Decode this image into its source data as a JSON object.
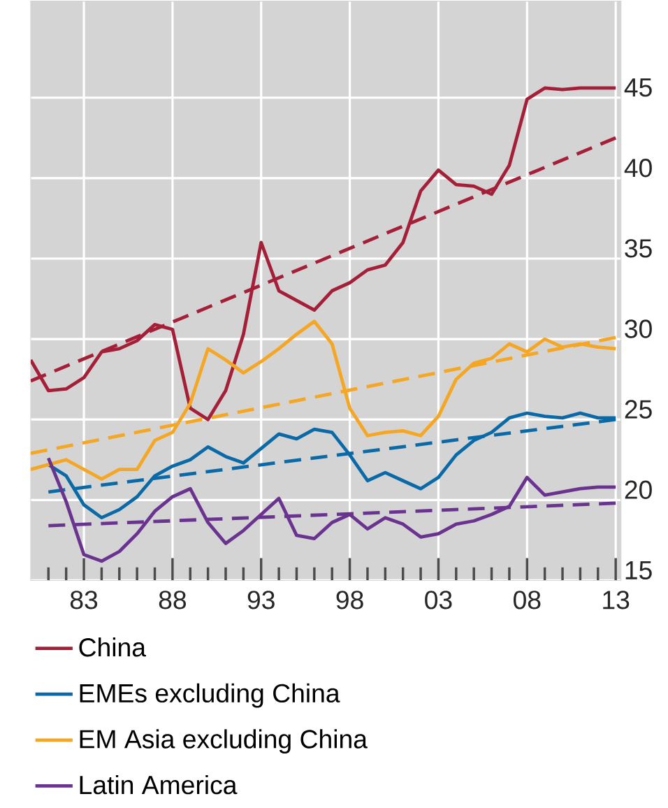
{
  "chart_data": {
    "type": "line",
    "x": [
      1980,
      1981,
      1982,
      1983,
      1984,
      1985,
      1986,
      1987,
      1988,
      1989,
      1990,
      1991,
      1992,
      1993,
      1994,
      1995,
      1996,
      1997,
      1998,
      1999,
      2000,
      2001,
      2002,
      2003,
      2004,
      2005,
      2006,
      2007,
      2008,
      2009,
      2010,
      2011,
      2012,
      2013
    ],
    "series": [
      {
        "name": "China",
        "color": "#a51f38",
        "values": [
          28.7,
          26.8,
          26.9,
          27.6,
          29.2,
          29.4,
          29.9,
          30.9,
          30.6,
          25.7,
          25.0,
          26.8,
          30.3,
          36.0,
          33.0,
          32.4,
          31.8,
          33.0,
          33.5,
          34.3,
          34.6,
          36.0,
          39.2,
          40.5,
          39.6,
          39.5,
          39.0,
          40.8,
          44.9,
          45.6,
          45.5,
          45.6,
          45.6,
          45.6
        ]
      },
      {
        "name": "EMEs excluding China",
        "color": "#0a6aa8",
        "values": [
          null,
          22.2,
          21.5,
          19.7,
          18.9,
          19.4,
          20.2,
          21.5,
          22.1,
          22.5,
          23.3,
          22.7,
          22.3,
          23.2,
          24.1,
          23.8,
          24.4,
          24.2,
          22.8,
          21.2,
          21.7,
          21.2,
          20.7,
          21.4,
          22.8,
          23.7,
          24.2,
          25.1,
          25.4,
          25.2,
          25.1,
          25.4,
          25.1,
          25.1
        ]
      },
      {
        "name": "EM Asia excluding China",
        "color": "#f5a623",
        "values": [
          21.9,
          22.2,
          22.5,
          21.9,
          21.3,
          21.9,
          21.9,
          23.7,
          24.2,
          26.0,
          29.4,
          28.7,
          27.9,
          28.6,
          29.4,
          30.3,
          31.1,
          29.7,
          25.7,
          24.0,
          24.2,
          24.3,
          24.0,
          25.2,
          27.5,
          28.5,
          28.8,
          29.7,
          29.2,
          30.0,
          29.5,
          29.7,
          29.5,
          29.4
        ]
      },
      {
        "name": "Latin America",
        "color": "#6b3390",
        "values": [
          null,
          22.6,
          19.9,
          16.6,
          16.2,
          16.8,
          17.9,
          19.3,
          20.2,
          20.7,
          18.6,
          17.3,
          18.1,
          19.1,
          20.1,
          17.8,
          17.6,
          18.6,
          19.1,
          18.2,
          18.9,
          18.5,
          17.7,
          17.9,
          18.5,
          18.7,
          19.1,
          19.6,
          21.4,
          20.3,
          20.5,
          20.7,
          20.8,
          20.8
        ]
      },
      {
        "color": "#a51f38",
        "line_style": "dashed",
        "x": [
          1980,
          2013
        ],
        "values": [
          27.4,
          42.5
        ]
      },
      {
        "color": "#0a6aa8",
        "line_style": "dashed",
        "x": [
          1981,
          2013
        ],
        "values": [
          20.5,
          25.0
        ]
      },
      {
        "color": "#f5a623",
        "line_style": "dashed",
        "x": [
          1980,
          2013
        ],
        "values": [
          22.9,
          30.1
        ]
      },
      {
        "color": "#6b3390",
        "line_style": "dashed",
        "x": [
          1981,
          2013
        ],
        "values": [
          18.4,
          19.8
        ]
      }
    ],
    "xlim": [
      1980,
      2013.3
    ],
    "ylim": [
      15,
      51
    ],
    "xticks": [
      {
        "value": 1981,
        "label": null
      },
      {
        "value": 1982,
        "label": null
      },
      {
        "value": 1983,
        "label": "83"
      },
      {
        "value": 1984,
        "label": null
      },
      {
        "value": 1985,
        "label": null
      },
      {
        "value": 1986,
        "label": null
      },
      {
        "value": 1987,
        "label": null
      },
      {
        "value": 1988,
        "label": "88"
      },
      {
        "value": 1989,
        "label": null
      },
      {
        "value": 1990,
        "label": null
      },
      {
        "value": 1991,
        "label": null
      },
      {
        "value": 1992,
        "label": null
      },
      {
        "value": 1993,
        "label": "93"
      },
      {
        "value": 1994,
        "label": null
      },
      {
        "value": 1995,
        "label": null
      },
      {
        "value": 1996,
        "label": null
      },
      {
        "value": 1997,
        "label": null
      },
      {
        "value": 1998,
        "label": "98"
      },
      {
        "value": 1999,
        "label": null
      },
      {
        "value": 2000,
        "label": null
      },
      {
        "value": 2001,
        "label": null
      },
      {
        "value": 2002,
        "label": null
      },
      {
        "value": 2003,
        "label": "03"
      },
      {
        "value": 2004,
        "label": null
      },
      {
        "value": 2005,
        "label": null
      },
      {
        "value": 2006,
        "label": null
      },
      {
        "value": 2007,
        "label": null
      },
      {
        "value": 2008,
        "label": "08"
      },
      {
        "value": 2009,
        "label": null
      },
      {
        "value": 2010,
        "label": null
      },
      {
        "value": 2011,
        "label": null
      },
      {
        "value": 2012,
        "label": null
      },
      {
        "value": 2013,
        "label": "13"
      }
    ],
    "yticks": [
      15,
      20,
      25,
      30,
      35,
      40,
      45
    ],
    "grid": true,
    "legend": "bottom",
    "line_style": "solid"
  }
}
